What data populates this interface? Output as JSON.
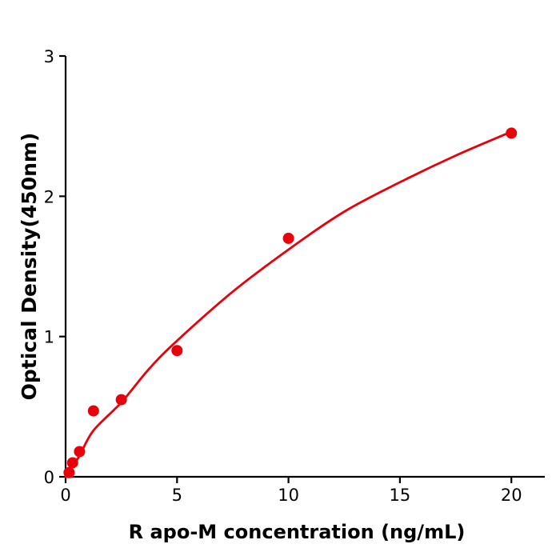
{
  "chart_data": {
    "type": "scatter",
    "title": "",
    "xlabel": "R  apo-M concentration (ng/mL)",
    "ylabel": "Optical Density(450nm)",
    "xlim": [
      0,
      21.5
    ],
    "ylim": [
      0,
      3
    ],
    "x_ticks": [
      0,
      5,
      10,
      15,
      20
    ],
    "y_ticks": [
      0,
      1,
      2,
      3
    ],
    "grid": false,
    "legend": "none",
    "colors": {
      "point": "#e8000b",
      "curve": "#e8000b",
      "axis": "#000000",
      "background": "#ffffff"
    },
    "points": [
      {
        "x": 0.156,
        "y": 0.03
      },
      {
        "x": 0.313,
        "y": 0.1
      },
      {
        "x": 0.625,
        "y": 0.18
      },
      {
        "x": 1.25,
        "y": 0.47
      },
      {
        "x": 2.5,
        "y": 0.55
      },
      {
        "x": 5,
        "y": 0.9
      },
      {
        "x": 10,
        "y": 1.7
      },
      {
        "x": 20,
        "y": 2.45
      }
    ],
    "fit_curve": {
      "x": [
        0,
        0.3,
        0.625,
        1.25,
        2.5,
        3.75,
        5,
        7.5,
        10,
        12.5,
        15,
        17.5,
        20
      ],
      "y": [
        0.0,
        0.07,
        0.15,
        0.33,
        0.53,
        0.77,
        0.97,
        1.32,
        1.62,
        1.89,
        2.1,
        2.29,
        2.46
      ]
    }
  }
}
